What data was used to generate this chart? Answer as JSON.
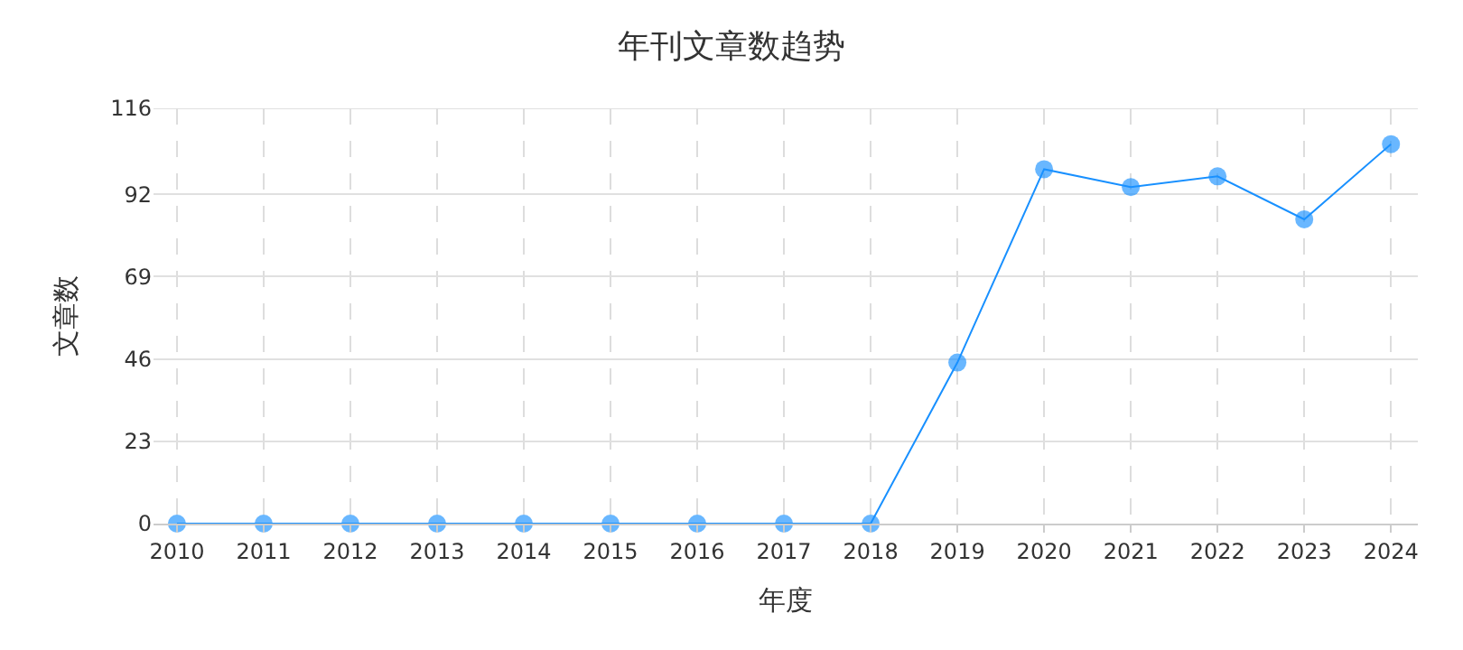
{
  "chart_data": {
    "type": "line",
    "title": "年刊文章数趋势",
    "xlabel": "年度",
    "ylabel": "文章数",
    "categories": [
      "2010",
      "2011",
      "2012",
      "2013",
      "2014",
      "2015",
      "2016",
      "2017",
      "2018",
      "2019",
      "2020",
      "2021",
      "2022",
      "2023",
      "2024"
    ],
    "series": [
      {
        "color": "#1890ff",
        "values": [
          0,
          0,
          0,
          0,
          0,
          0,
          0,
          0,
          0,
          45,
          99,
          94,
          97,
          85,
          106
        ]
      }
    ],
    "ylim": [
      0,
      116
    ],
    "yticks": [
      0,
      23,
      46,
      69,
      92,
      116
    ],
    "grid": true,
    "marker": "circle",
    "line_style": "solid",
    "legend": false
  }
}
